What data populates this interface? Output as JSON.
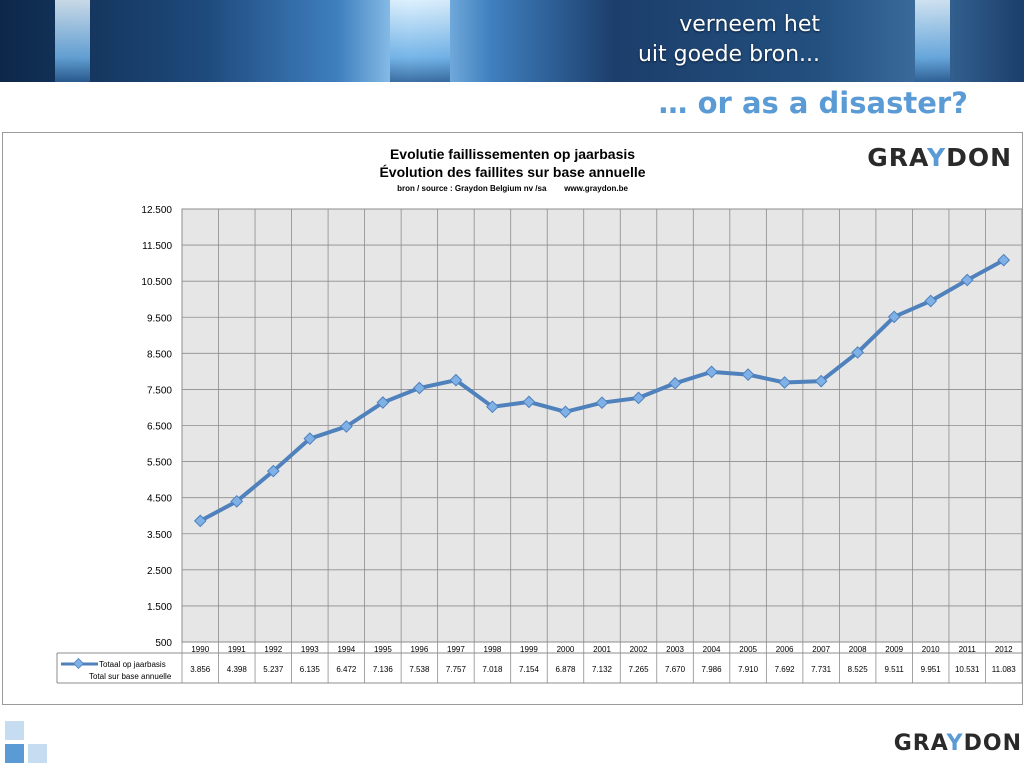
{
  "banner": {
    "tagline_line1": "verneem het",
    "tagline_line2": "uit goede bron..."
  },
  "slide_title": "… or as a disaster?",
  "logo": {
    "text_before": "GRA",
    "accent": "Y",
    "text_after": "DON"
  },
  "chart_data": {
    "type": "line",
    "title_line1": "Evolutie faillissementen op jaarbasis",
    "title_line2": "Évolution des faillites sur base annuelle",
    "source": "bron / source : Graydon Belgium nv /sa        www.graydon.be",
    "categories": [
      "1990",
      "1991",
      "1992",
      "1993",
      "1994",
      "1995",
      "1996",
      "1997",
      "1998",
      "1999",
      "2000",
      "2001",
      "2002",
      "2003",
      "2004",
      "2005",
      "2006",
      "2007",
      "2008",
      "2009",
      "2010",
      "2011",
      "2012"
    ],
    "series": [
      {
        "name": "Totaal op jaarbasis",
        "name2": "Total sur base annuelle",
        "color": "#4f81bd",
        "marker": "#7fb0e6",
        "values": [
          3856,
          4398,
          5237,
          6135,
          6472,
          7136,
          7538,
          7757,
          7018,
          7154,
          6878,
          7132,
          7265,
          7670,
          7986,
          7910,
          7692,
          7731,
          8525,
          9511,
          9951,
          10531,
          11083
        ],
        "labels": [
          "3.856",
          "4.398",
          "5.237",
          "6.135",
          "6.472",
          "7.136",
          "7.538",
          "7.757",
          "7.018",
          "7.154",
          "6.878",
          "7.132",
          "7.265",
          "7.670",
          "7.986",
          "7.910",
          "7.692",
          "7.731",
          "8.525",
          "9.511",
          "9.951",
          "10.531",
          "11.083"
        ]
      }
    ],
    "ylim": [
      500,
      12500
    ],
    "yticks": [
      500,
      1500,
      2500,
      3500,
      4500,
      5500,
      6500,
      7500,
      8500,
      9500,
      10500,
      11500,
      12500
    ],
    "ytick_labels": [
      "500",
      "1.500",
      "2.500",
      "3.500",
      "4.500",
      "5.500",
      "6.500",
      "7.500",
      "8.500",
      "9.500",
      "10.500",
      "11.500",
      "12.500"
    ],
    "grid": true,
    "legend": "bottom-left data table",
    "plot_bg": "#e6e6e6"
  }
}
